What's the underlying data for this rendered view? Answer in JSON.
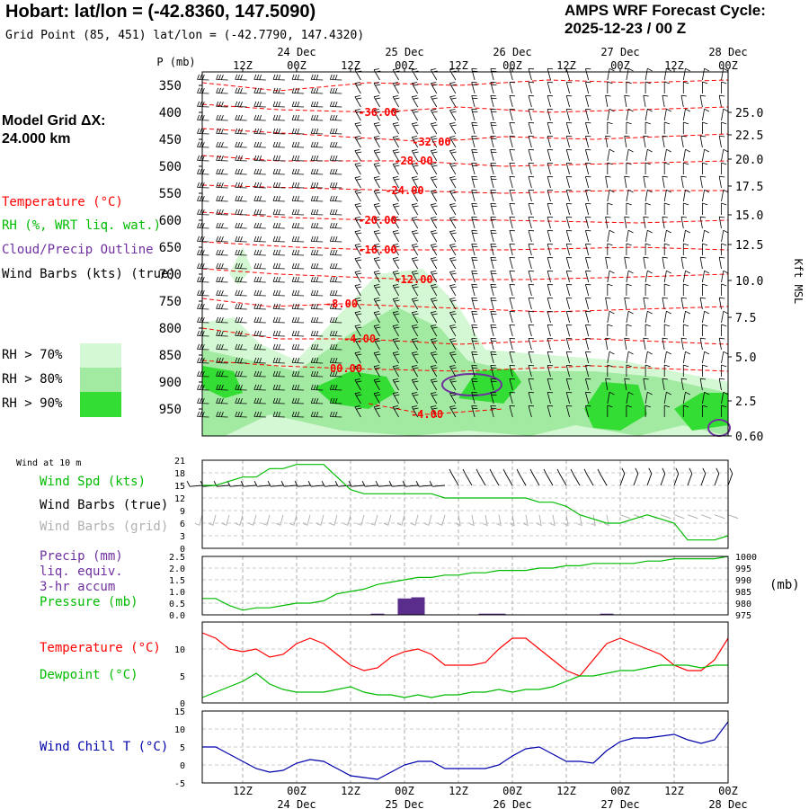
{
  "header": {
    "title": "Hobart:  lat/lon = (-42.8360, 147.5090)",
    "grid_point": "Grid Point (85, 451) lat/lon = (-42.7790, 147.4320)",
    "cycle_label": "AMPS WRF Forecast Cycle:",
    "cycle_value": "2025-12-23 / 00  Z",
    "model_grid_line1": "Model Grid ΔX:",
    "model_grid_line2": " 24.000 km"
  },
  "colors": {
    "temperature": "#ff0000",
    "rh": "#00bb00",
    "cloud": "#7030a0",
    "wind_barbs": "#000000",
    "wind_barbs_grid": "#b0b0b0",
    "pressure": "#00bb00",
    "precip": "#5a2d8c",
    "dewpoint": "#00bb00",
    "wind_chill": "#0000aa",
    "rh70": "#d4f8d4",
    "rh80": "#a2eaa2",
    "rh90": "#33dd33"
  },
  "time_axis": {
    "ticks": [
      "12Z",
      "00Z",
      "12Z",
      "00Z",
      "12Z",
      "00Z",
      "12Z",
      "00Z",
      "12Z",
      "00Z"
    ],
    "tick_hours": [
      12,
      24,
      36,
      48,
      60,
      72,
      84,
      96,
      108,
      120
    ],
    "dates": [
      "24 Dec",
      "25 Dec",
      "26 Dec",
      "27 Dec",
      "28 Dec"
    ],
    "date_hours": [
      24,
      48,
      72,
      96,
      120
    ],
    "range_hours": [
      3,
      120
    ]
  },
  "legend": {
    "temperature": "Temperature (°C)",
    "rh": "RH (%, WRT liq. wat.)",
    "cloud": "Cloud/Precip Outline",
    "wind": "Wind Barbs (kts) (true)",
    "rh70": "RH > 70%",
    "rh80": "RH > 80%",
    "rh90": "RH > 90%"
  },
  "chart_data": [
    {
      "type": "contour",
      "name": "cross-section",
      "yaxis_label": "P (mb)",
      "pressure_levels": [
        "350",
        "400",
        "450",
        "500",
        "550",
        "600",
        "650",
        "700",
        "750",
        "800",
        "850",
        "900",
        "950"
      ],
      "right_axis_label": "Kft MSL",
      "height_ticks_kft": [
        "25.0",
        "22.5",
        "20.0",
        "17.5",
        "15.0",
        "12.5",
        "10.0",
        "7.5",
        "5.0",
        "2.5",
        "0.60"
      ],
      "temperature_contour_labels": [
        {
          "label": "-36.00",
          "hour": 42,
          "p": 400
        },
        {
          "label": "-32.00",
          "hour": 54,
          "p": 455
        },
        {
          "label": "-28.00",
          "hour": 50,
          "p": 490
        },
        {
          "label": "-24.00",
          "hour": 48,
          "p": 545
        },
        {
          "label": "-20.00",
          "hour": 42,
          "p": 600
        },
        {
          "label": "-16.00",
          "hour": 42,
          "p": 655
        },
        {
          "label": "-12.00",
          "hour": 50,
          "p": 710
        },
        {
          "label": "-8.00",
          "hour": 34,
          "p": 755
        },
        {
          "label": "-4.00",
          "hour": 38,
          "p": 820
        },
        {
          "label": "00.00",
          "hour": 35,
          "p": 875
        },
        {
          "label": "-4.00",
          "hour": 53,
          "p": 960
        }
      ]
    },
    {
      "type": "line",
      "name": "wind-panel",
      "title": "Wind at 10 m",
      "labels": {
        "speed": "Wind Spd (kts)",
        "barbs_true": "Wind Barbs (true)",
        "barbs_grid": "Wind Barbs (grid)"
      },
      "ylim": [
        0,
        21
      ],
      "yticks": [
        "0",
        "3",
        "6",
        "9",
        "12",
        "15",
        "18",
        "21"
      ],
      "series": [
        {
          "name": "Wind Spd (kts)",
          "x": [
            3,
            6,
            9,
            12,
            15,
            18,
            21,
            24,
            27,
            30,
            33,
            36,
            39,
            42,
            45,
            48,
            51,
            54,
            57,
            60,
            63,
            66,
            69,
            72,
            75,
            78,
            81,
            84,
            87,
            90,
            93,
            96,
            99,
            102,
            105,
            108,
            111,
            114,
            117,
            120
          ],
          "values": [
            15,
            15,
            16,
            17,
            17,
            19,
            19,
            20,
            20,
            20,
            17,
            14,
            13,
            13,
            13,
            13,
            13,
            13,
            12,
            12,
            12,
            12,
            12,
            12,
            12,
            11,
            11,
            10,
            8,
            7,
            6,
            6,
            7,
            8,
            7,
            6,
            2,
            2,
            2,
            3
          ]
        }
      ]
    },
    {
      "type": "bar+line",
      "name": "precip-pressure-panel",
      "labels": {
        "precip": "Precip (mm)",
        "liq": "liq. equiv.",
        "accum": "3-hr accum",
        "pressure": "Pressure (mb)"
      },
      "units_right": "(mb)",
      "left_ylim": [
        0,
        2.5
      ],
      "left_yticks": [
        "0.0",
        "0.5",
        "1.0",
        "1.5",
        "2.0",
        "2.5"
      ],
      "right_ylim": [
        975,
        1000
      ],
      "right_yticks": [
        "975",
        "980",
        "985",
        "990",
        "995",
        "1000"
      ],
      "precip": {
        "x": [
          42,
          45,
          48,
          51,
          54,
          57,
          60,
          66,
          69,
          72,
          93
        ],
        "values": [
          0.05,
          0.02,
          0.7,
          0.75,
          0.02,
          0.02,
          0.01,
          0.05,
          0.05,
          0.02,
          0.05
        ]
      },
      "pressure": {
        "x": [
          3,
          6,
          9,
          12,
          15,
          18,
          21,
          24,
          27,
          30,
          33,
          36,
          39,
          42,
          45,
          48,
          51,
          54,
          57,
          60,
          63,
          66,
          69,
          72,
          75,
          78,
          81,
          84,
          87,
          90,
          93,
          96,
          99,
          102,
          105,
          108,
          111,
          114,
          117,
          120
        ],
        "values": [
          982,
          982,
          979,
          977,
          978,
          978,
          979,
          980,
          980,
          981,
          984,
          985,
          986,
          988,
          989,
          990,
          991,
          991,
          992,
          992,
          993,
          993,
          994,
          994,
          994,
          995,
          995,
          996,
          996,
          997,
          997,
          997,
          997,
          998,
          998,
          999,
          999,
          999,
          999,
          1000
        ]
      }
    },
    {
      "type": "line",
      "name": "temperature-panel",
      "labels": {
        "temperature": "Temperature (°C)",
        "dewpoint": "Dewpoint (°C)"
      },
      "ylim": [
        0,
        15
      ],
      "yticks": [
        "0",
        "5",
        "10"
      ],
      "series": [
        {
          "name": "Temperature",
          "x": [
            3,
            6,
            9,
            12,
            15,
            18,
            21,
            24,
            27,
            30,
            33,
            36,
            39,
            42,
            45,
            48,
            51,
            54,
            57,
            60,
            63,
            66,
            69,
            72,
            75,
            78,
            81,
            84,
            87,
            90,
            93,
            96,
            99,
            102,
            105,
            108,
            111,
            114,
            117,
            120
          ],
          "values": [
            13,
            12,
            10,
            9.5,
            10,
            8.5,
            9,
            11,
            12,
            11,
            9,
            7,
            6,
            6.5,
            8.5,
            9.5,
            10,
            9,
            7,
            7,
            7,
            7.5,
            10,
            12,
            12,
            10,
            8,
            6,
            5,
            8,
            11,
            12,
            11,
            10,
            9,
            7,
            6,
            6,
            8,
            12
          ]
        },
        {
          "name": "Dewpoint",
          "x": [
            3,
            6,
            9,
            12,
            15,
            18,
            21,
            24,
            27,
            30,
            33,
            36,
            39,
            42,
            45,
            48,
            51,
            54,
            57,
            60,
            63,
            66,
            69,
            72,
            75,
            78,
            81,
            84,
            87,
            90,
            93,
            96,
            99,
            102,
            105,
            108,
            111,
            114,
            117,
            120
          ],
          "values": [
            1,
            2,
            3,
            4,
            5.5,
            3.5,
            2.5,
            2,
            2,
            2,
            2.5,
            3,
            2,
            1.5,
            1.5,
            1,
            1.5,
            1,
            1.5,
            1.5,
            2,
            2,
            2.5,
            2,
            2.5,
            2.5,
            3,
            4,
            5,
            5,
            5.5,
            6,
            6,
            6.5,
            7,
            7,
            7,
            6.5,
            7,
            7
          ]
        }
      ]
    },
    {
      "type": "line",
      "name": "wind-chill-panel",
      "labels": {
        "wind_chill": "Wind Chill T (°C)"
      },
      "ylim": [
        -5,
        15
      ],
      "yticks": [
        "-5",
        "0",
        "5",
        "10",
        "15"
      ],
      "series": [
        {
          "name": "Wind Chill T",
          "x": [
            3,
            6,
            9,
            12,
            15,
            18,
            21,
            24,
            27,
            30,
            33,
            36,
            39,
            42,
            45,
            48,
            51,
            54,
            57,
            60,
            63,
            66,
            69,
            72,
            75,
            78,
            81,
            84,
            87,
            90,
            93,
            96,
            99,
            102,
            105,
            108,
            111,
            114,
            117,
            120
          ],
          "values": [
            5,
            5,
            3,
            1,
            -1,
            -2,
            -1.5,
            0.5,
            1.5,
            1,
            -1,
            -3,
            -3.5,
            -4,
            -2,
            0,
            1,
            1,
            -1,
            -1,
            -1,
            -1,
            0,
            2.5,
            4.5,
            5,
            3,
            1,
            1,
            0.5,
            4,
            6.5,
            7.5,
            7.5,
            8,
            8.5,
            7,
            6,
            7,
            12
          ]
        }
      ]
    }
  ]
}
